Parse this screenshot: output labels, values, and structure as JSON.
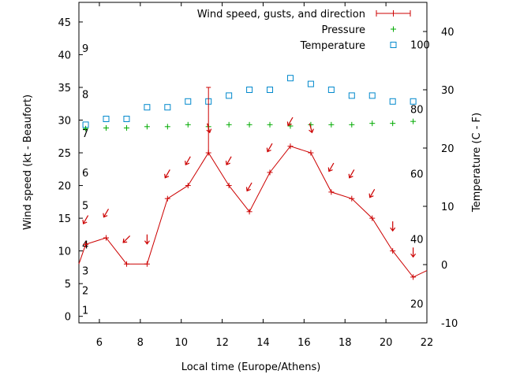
{
  "chart_data": {
    "type": "line",
    "xlabel": "Local time (Europe/Athens)",
    "ylabel_left": "Wind speed (kt - Beaufort)",
    "ylabel_right": "Temperature (C - F)",
    "xlim": [
      5,
      22
    ],
    "ylim_left": [
      -1,
      48
    ],
    "ylim_right": [
      -10,
      45
    ],
    "x_ticks": [
      6,
      8,
      10,
      12,
      14,
      16,
      18,
      20,
      22
    ],
    "y_ticks_left": [
      0,
      5,
      10,
      15,
      20,
      25,
      30,
      35,
      40,
      45
    ],
    "y_ticks_right": [
      -10,
      0,
      10,
      20,
      30,
      40
    ],
    "beaufort_labels": [
      {
        "label": "1",
        "kt": 1
      },
      {
        "label": "2",
        "kt": 4
      },
      {
        "label": "3",
        "kt": 7
      },
      {
        "label": "4",
        "kt": 11
      },
      {
        "label": "5",
        "kt": 17
      },
      {
        "label": "6",
        "kt": 22
      },
      {
        "label": "7",
        "kt": 28
      },
      {
        "label": "8",
        "kt": 34
      },
      {
        "label": "9",
        "kt": 41
      }
    ],
    "fahrenheit_labels": [
      {
        "label": "20",
        "c": -6.7
      },
      {
        "label": "40",
        "c": 4.4
      },
      {
        "label": "60",
        "c": 15.6
      },
      {
        "label": "80",
        "c": 26.7
      },
      {
        "label": "100",
        "c": 37.8
      }
    ],
    "legend_position": "top-right",
    "series": [
      {
        "name": "Wind speed, gusts, and direction",
        "color": "#cc0000",
        "style": "line with error bars",
        "x": [
          5,
          5.33,
          6.33,
          7.33,
          8.33,
          9.33,
          10.33,
          11.33,
          12.33,
          13.33,
          14.33,
          15.33,
          16.33,
          17.33,
          18.33,
          19.33,
          20.33,
          21.33,
          22
        ],
        "values": [
          8,
          11,
          12,
          8,
          8,
          18,
          20,
          25,
          20,
          16,
          22,
          26,
          25,
          19,
          18,
          15,
          10,
          6,
          7
        ],
        "gusts": [
          null,
          null,
          null,
          null,
          null,
          null,
          null,
          35,
          null,
          null,
          null,
          null,
          null,
          null,
          null,
          null,
          null,
          null,
          null
        ],
        "direction_deg": [
          null,
          210,
          210,
          225,
          180,
          210,
          210,
          165,
          210,
          210,
          210,
          210,
          165,
          210,
          210,
          210,
          180,
          180,
          null
        ]
      },
      {
        "name": "Pressure",
        "color": "#00aa00",
        "marker": "plus",
        "x": [
          5.33,
          6.33,
          7.33,
          8.33,
          9.33,
          10.33,
          11.33,
          12.33,
          13.33,
          14.33,
          15.33,
          16.33,
          17.33,
          18.33,
          19.33,
          20.33,
          21.33
        ],
        "values": [
          28.7,
          28.8,
          28.8,
          29.0,
          29.0,
          29.3,
          29.0,
          29.3,
          29.3,
          29.3,
          29.1,
          29.3,
          29.3,
          29.3,
          29.5,
          29.5,
          29.8
        ]
      },
      {
        "name": "Temperature",
        "color": "#0088cc",
        "marker": "square",
        "axis": "right",
        "x": [
          5.33,
          6.33,
          7.33,
          8.33,
          9.33,
          10.33,
          11.33,
          12.33,
          13.33,
          14.33,
          15.33,
          16.33,
          17.33,
          18.33,
          19.33,
          20.33,
          21.33
        ],
        "values": [
          24,
          25,
          25,
          27,
          27,
          28,
          28,
          29,
          30,
          30,
          32,
          31,
          30,
          29,
          29,
          28,
          28
        ]
      }
    ]
  }
}
